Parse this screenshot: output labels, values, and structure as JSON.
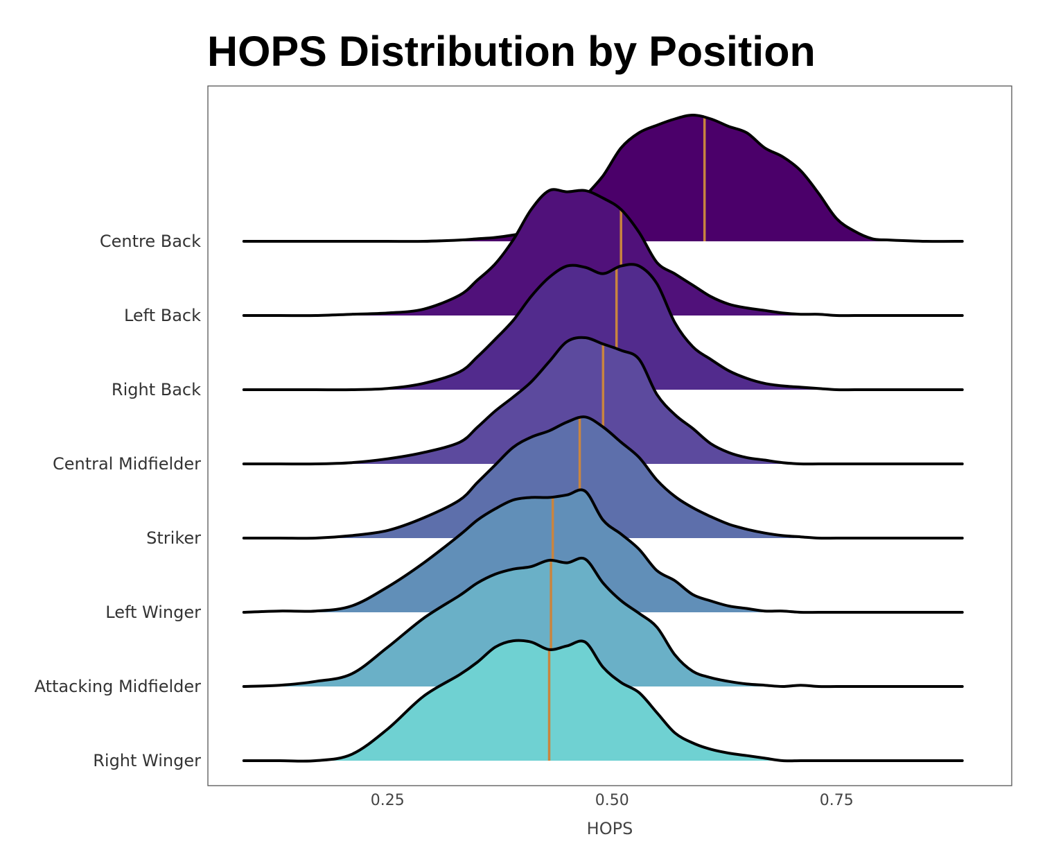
{
  "chart_data": {
    "type": "ridgeline",
    "title": "HOPS Distribution by Position",
    "xlabel": "HOPS",
    "ylabel": "",
    "xlim": [
      0.05,
      0.945
    ],
    "x_ticks": [
      0.25,
      0.5,
      0.75
    ],
    "x_tick_labels": [
      "0.25",
      "0.50",
      "0.75"
    ],
    "grid": false,
    "legend": "none",
    "median_line_color": "#C9853F",
    "outline_color": "#000000",
    "x": [
      0.09,
      0.13,
      0.17,
      0.21,
      0.25,
      0.29,
      0.33,
      0.35,
      0.37,
      0.39,
      0.41,
      0.43,
      0.45,
      0.47,
      0.49,
      0.51,
      0.53,
      0.55,
      0.57,
      0.59,
      0.61,
      0.63,
      0.65,
      0.67,
      0.69,
      0.71,
      0.73,
      0.75,
      0.77,
      0.79,
      0.81,
      0.85,
      0.89
    ],
    "series": [
      {
        "name": "Centre Back",
        "color": "#4B006A",
        "median": 0.603,
        "values": [
          0,
          0,
          0,
          0,
          0,
          0,
          0.01,
          0.02,
          0.03,
          0.05,
          0.08,
          0.14,
          0.22,
          0.36,
          0.52,
          0.74,
          0.86,
          0.92,
          0.97,
          1.0,
          0.97,
          0.91,
          0.86,
          0.74,
          0.67,
          0.56,
          0.38,
          0.18,
          0.08,
          0.02,
          0.01,
          0,
          0
        ]
      },
      {
        "name": "Left Back",
        "color": "#50117A",
        "median": 0.51,
        "values": [
          0,
          0,
          0,
          0.01,
          0.02,
          0.05,
          0.16,
          0.28,
          0.41,
          0.6,
          0.84,
          0.99,
          0.98,
          0.99,
          0.93,
          0.84,
          0.66,
          0.42,
          0.33,
          0.24,
          0.15,
          0.09,
          0.06,
          0.04,
          0.02,
          0.01,
          0.01,
          0,
          0,
          0,
          0,
          0,
          0
        ]
      },
      {
        "name": "Right Back",
        "color": "#522B8D",
        "median": 0.505,
        "values": [
          0,
          0,
          0,
          0,
          0.01,
          0.05,
          0.14,
          0.26,
          0.4,
          0.55,
          0.74,
          0.89,
          0.98,
          0.97,
          0.92,
          0.98,
          0.98,
          0.84,
          0.53,
          0.34,
          0.24,
          0.15,
          0.09,
          0.05,
          0.03,
          0.02,
          0.01,
          0,
          0,
          0,
          0,
          0,
          0
        ]
      },
      {
        "name": "Central Midfielder",
        "color": "#5C4A9E",
        "median": 0.49,
        "values": [
          0,
          0,
          0,
          0.01,
          0.04,
          0.09,
          0.17,
          0.29,
          0.42,
          0.53,
          0.65,
          0.81,
          0.97,
          1.0,
          0.95,
          0.9,
          0.83,
          0.55,
          0.39,
          0.28,
          0.16,
          0.09,
          0.05,
          0.03,
          0.01,
          0,
          0,
          0,
          0,
          0,
          0,
          0,
          0
        ]
      },
      {
        "name": "Striker",
        "color": "#5D6FAB",
        "median": 0.464,
        "values": [
          0,
          0,
          0,
          0.02,
          0.06,
          0.16,
          0.3,
          0.44,
          0.58,
          0.72,
          0.8,
          0.85,
          0.92,
          0.96,
          0.88,
          0.76,
          0.64,
          0.46,
          0.33,
          0.24,
          0.17,
          0.11,
          0.07,
          0.04,
          0.02,
          0.01,
          0,
          0,
          0,
          0,
          0,
          0,
          0
        ]
      },
      {
        "name": "Left Winger",
        "color": "#618FB8",
        "median": 0.434,
        "values": [
          0,
          0.01,
          0.01,
          0.05,
          0.2,
          0.39,
          0.61,
          0.73,
          0.82,
          0.89,
          0.91,
          0.91,
          0.93,
          0.96,
          0.73,
          0.62,
          0.5,
          0.33,
          0.25,
          0.14,
          0.09,
          0.05,
          0.03,
          0.01,
          0.01,
          0,
          0,
          0,
          0,
          0,
          0,
          0,
          0
        ]
      },
      {
        "name": "Attacking Midfielder",
        "color": "#6AB0C7",
        "median": 0.432,
        "values": [
          0,
          0.01,
          0.04,
          0.1,
          0.31,
          0.54,
          0.72,
          0.82,
          0.89,
          0.93,
          0.95,
          1.0,
          0.98,
          1.01,
          0.82,
          0.68,
          0.58,
          0.47,
          0.25,
          0.12,
          0.07,
          0.04,
          0.02,
          0.01,
          0,
          0.01,
          0,
          0,
          0,
          0,
          0,
          0,
          0
        ]
      },
      {
        "name": "Right Winger",
        "color": "#6FD1D2",
        "median": 0.43,
        "values": [
          0,
          0,
          0,
          0.05,
          0.25,
          0.51,
          0.68,
          0.78,
          0.9,
          0.95,
          0.94,
          0.88,
          0.91,
          0.94,
          0.74,
          0.62,
          0.54,
          0.38,
          0.22,
          0.14,
          0.09,
          0.06,
          0.04,
          0.02,
          0,
          0,
          0,
          0,
          0,
          0,
          0,
          0,
          0
        ]
      }
    ]
  }
}
